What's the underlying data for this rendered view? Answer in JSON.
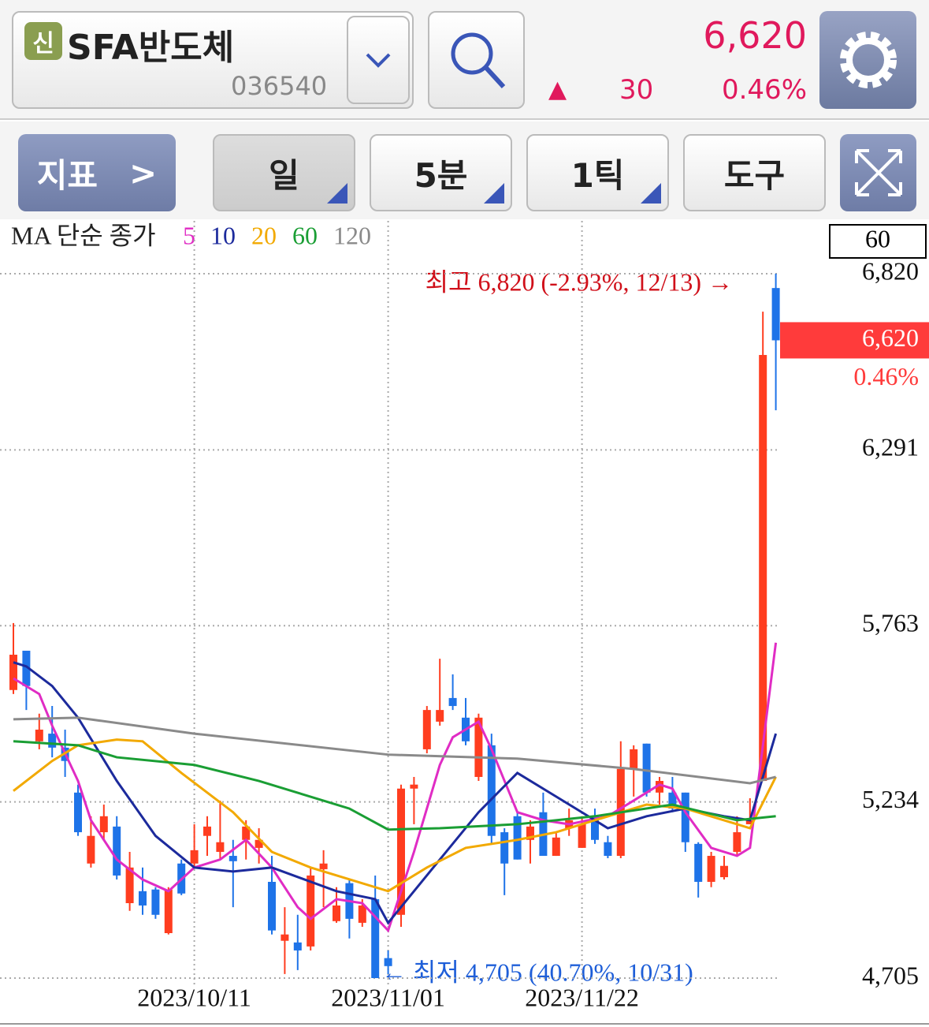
{
  "header": {
    "badge": "신",
    "name": "SFA반도체",
    "code": "036540",
    "price": "6,620",
    "change_arrow": "▲",
    "change": "30",
    "change_rate": "0.46%"
  },
  "toolbar": {
    "indicator": "지표",
    "period": "일",
    "minute": "5분",
    "tick": "1틱",
    "tools": "도구"
  },
  "chart_data": {
    "type": "candlestick",
    "ma_title": "MA 단순 종가",
    "visible_count": "60",
    "categories": [
      null,
      null,
      null,
      null,
      null,
      null,
      null,
      null,
      null,
      null,
      null,
      null,
      null,
      null,
      "2023/10/11",
      null,
      null,
      null,
      null,
      null,
      null,
      null,
      null,
      null,
      null,
      null,
      null,
      null,
      null,
      "2023/11/01",
      null,
      null,
      null,
      null,
      null,
      null,
      null,
      null,
      null,
      null,
      null,
      null,
      null,
      null,
      "2023/11/22",
      null,
      null,
      null,
      null,
      null,
      null,
      null,
      null,
      null,
      null,
      null,
      null,
      null,
      null,
      null
    ],
    "open": [
      5570,
      5688,
      5416,
      5439,
      5397,
      5262,
      5049,
      5143,
      5160,
      4930,
      4966,
      4971,
      4840,
      5049,
      5049,
      5132,
      5084,
      5072,
      5120,
      5096,
      4994,
      4817,
      4812,
      4800,
      5032,
      4876,
      4990,
      4871,
      4942,
      4765,
      4895,
      5274,
      5392,
      5475,
      5546,
      5487,
      5309,
      5404,
      5143,
      5191,
      5120,
      5203,
      5072,
      5155,
      5096,
      5191,
      5113,
      5072,
      5333,
      5409,
      5262,
      5262,
      5262,
      5108,
      4994,
      5008,
      5084,
      5167,
      5297,
      6777
    ],
    "high": [
      5771,
      5688,
      5499,
      5522,
      5451,
      5286,
      5191,
      5226,
      5191,
      5084,
      5037,
      4978,
      4978,
      5061,
      5167,
      5191,
      5238,
      5120,
      5179,
      5155,
      5072,
      4918,
      4895,
      5037,
      5089,
      4978,
      5001,
      4942,
      5013,
      4788,
      5286,
      5309,
      5522,
      5664,
      5617,
      5546,
      5499,
      5439,
      5155,
      5203,
      5179,
      5262,
      5143,
      5214,
      5191,
      5214,
      5132,
      5416,
      5404,
      5409,
      5309,
      5309,
      5262,
      5113,
      5084,
      5072,
      5191,
      5245,
      6706,
      6820
    ],
    "low": [
      5558,
      5510,
      5392,
      5368,
      5309,
      5132,
      5037,
      5120,
      5001,
      4907,
      4895,
      4883,
      4836,
      4954,
      5037,
      5072,
      5061,
      4918,
      5061,
      5049,
      4836,
      4717,
      4729,
      4788,
      4918,
      4871,
      4824,
      4859,
      4705,
      4717,
      4859,
      5167,
      5380,
      5463,
      5510,
      5404,
      5297,
      5108,
      4954,
      5061,
      5049,
      5072,
      5072,
      5132,
      5096,
      5108,
      5065,
      5065,
      5250,
      5250,
      5226,
      5203,
      5084,
      4947,
      4978,
      5001,
      5072,
      5167,
      5297,
      6410
    ],
    "close": [
      5676,
      5582,
      5451,
      5397,
      5357,
      5143,
      5132,
      5191,
      5013,
      5037,
      4923,
      4895,
      4971,
      4959,
      5089,
      5160,
      5113,
      5056,
      5160,
      5120,
      4848,
      4836,
      4788,
      5013,
      5049,
      4923,
      4883,
      4923,
      4705,
      4741,
      5274,
      5286,
      5510,
      5510,
      5522,
      5416,
      5487,
      5132,
      5049,
      5061,
      5160,
      5072,
      5127,
      5179,
      5167,
      5120,
      5072,
      5333,
      5392,
      5262,
      5297,
      5214,
      5113,
      4994,
      5072,
      5042,
      5143,
      5179,
      6576,
      6620
    ],
    "up_color": "#ff3d1f",
    "down_color": "#1e73e8",
    "ylim": [
      4705,
      6820
    ],
    "yticks": [
      {
        "value": 6820,
        "label": "6,820"
      },
      {
        "value": 6291,
        "label": "6,291"
      },
      {
        "value": 5763,
        "label": "5,763"
      },
      {
        "value": 5234,
        "label": "5,234"
      },
      {
        "value": 4705,
        "label": "4,705"
      }
    ],
    "grid": true,
    "last_price": {
      "value": 6620,
      "label": "6,620"
    },
    "last_change": "0.46%",
    "annotations": {
      "high": "최고 6,820 (-2.93%, 12/13) →",
      "low": "← 최저 4,705 (40.70%, 10/31)"
    },
    "ma": [
      {
        "name": "5",
        "color": "#e02cc4",
        "x": [
          0,
          2,
          3,
          5,
          6,
          8,
          10,
          12,
          14,
          16,
          18,
          20,
          22,
          23,
          25,
          27,
          29,
          31,
          33,
          34,
          36,
          37,
          39,
          41,
          43,
          46,
          48,
          50,
          51,
          52,
          54,
          56,
          57,
          59
        ],
        "values": [
          5605,
          5558,
          5463,
          5297,
          5179,
          5061,
          5001,
          4966,
          5037,
          5061,
          5120,
          5037,
          4918,
          4883,
          4942,
          4930,
          4848,
          5084,
          5345,
          5428,
          5475,
          5392,
          5203,
          5179,
          5167,
          5191,
          5238,
          5286,
          5274,
          5203,
          5096,
          5072,
          5096,
          5712
        ]
      },
      {
        "name": "10",
        "color": "#1c2a9c",
        "x": [
          0,
          1,
          3,
          5,
          8,
          11,
          14,
          17,
          20,
          25,
          28,
          29,
          31,
          33,
          36,
          39,
          42,
          45,
          46,
          49,
          52,
          55,
          57,
          59
        ],
        "values": [
          5653,
          5641,
          5582,
          5487,
          5297,
          5132,
          5037,
          5025,
          5037,
          4966,
          4942,
          4871,
          4966,
          5061,
          5203,
          5321,
          5250,
          5179,
          5155,
          5191,
          5214,
          5191,
          5179,
          5439
        ]
      },
      {
        "name": "20",
        "color": "#f2a900",
        "x": [
          0,
          3,
          5,
          8,
          10,
          13,
          17,
          20,
          23,
          29,
          32,
          35,
          39,
          42,
          45,
          49,
          52,
          56,
          57,
          59
        ],
        "values": [
          5267,
          5357,
          5404,
          5421,
          5416,
          5321,
          5203,
          5084,
          5037,
          4966,
          5037,
          5096,
          5120,
          5143,
          5179,
          5226,
          5214,
          5167,
          5155,
          5309
        ]
      },
      {
        "name": "60",
        "color": "#1a9e34",
        "x": [
          0,
          5,
          8,
          14,
          19,
          26,
          29,
          33,
          39,
          45,
          51,
          56,
          59
        ],
        "values": [
          5416,
          5404,
          5368,
          5345,
          5297,
          5214,
          5151,
          5155,
          5167,
          5191,
          5226,
          5179,
          5191
        ]
      },
      {
        "name": "120",
        "color": "#8a8a8a",
        "x": [
          0,
          5,
          14,
          29,
          39,
          48,
          57,
          59
        ],
        "values": [
          5482,
          5487,
          5439,
          5376,
          5364,
          5333,
          5290,
          5309
        ]
      }
    ]
  }
}
